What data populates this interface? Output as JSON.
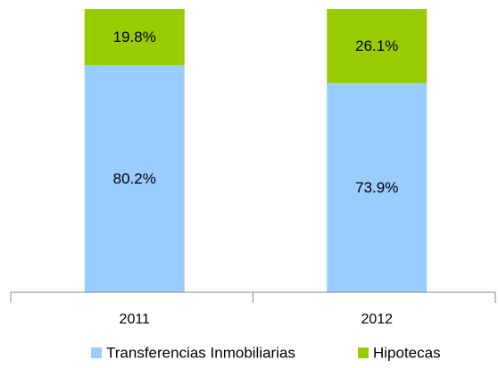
{
  "chart_data": {
    "type": "stacked_bar",
    "categories": [
      "2011",
      "2012"
    ],
    "series": [
      {
        "name": "Transferencias Inmobiliarias",
        "color": "#99ccff",
        "values": [
          80.2,
          73.9
        ],
        "value_labels": [
          "80.2%",
          "73.9%"
        ]
      },
      {
        "name": "Hipotecas",
        "color": "#99cc00",
        "values": [
          19.8,
          26.1
        ],
        "value_labels": [
          "19.8%",
          "26.1%"
        ]
      }
    ],
    "ylim": [
      0,
      100
    ]
  }
}
